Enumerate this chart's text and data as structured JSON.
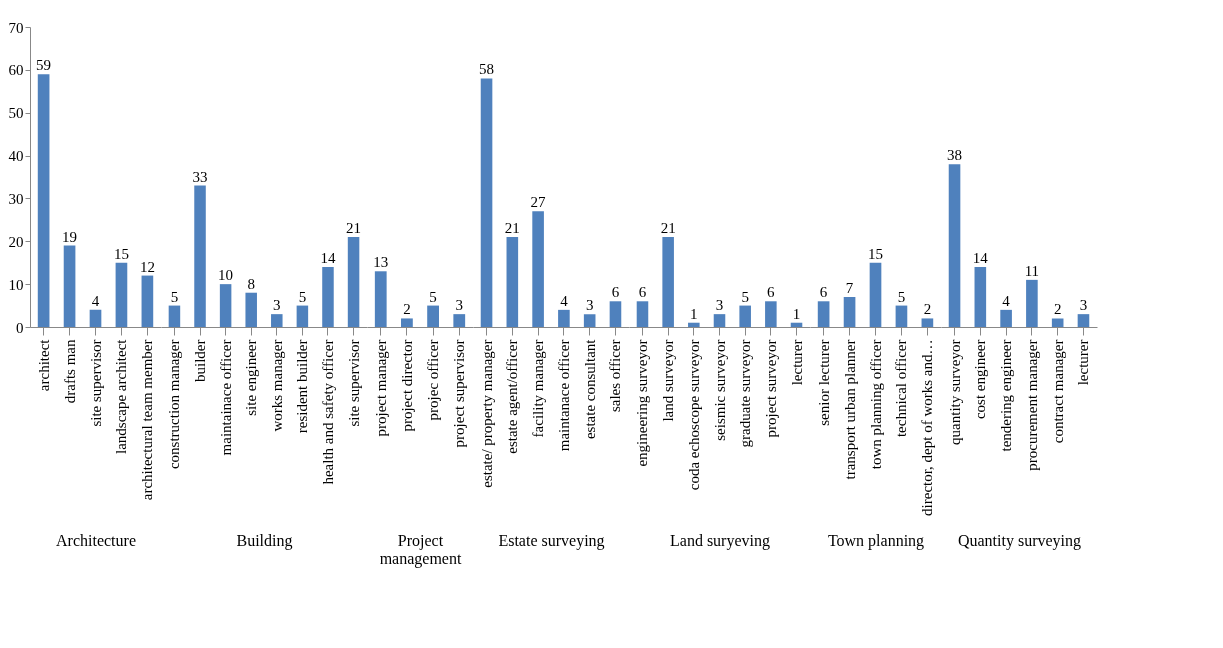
{
  "chart_data": [
    {
      "type": "bar",
      "xlabel": "Architecture",
      "categories": [
        "architect",
        "drafts man",
        "site supervisor",
        "landscape architect",
        "architectural team member"
      ],
      "values": [
        59,
        19,
        4,
        15,
        12
      ],
      "color": "#4f81bd",
      "ylim": [
        0,
        70
      ],
      "yticks": [
        0,
        10,
        20,
        30,
        40,
        50,
        60,
        70
      ],
      "data_labels": true,
      "grid": false
    },
    {
      "type": "bar",
      "xlabel": "Building",
      "categories": [
        "construction manager",
        "builder",
        "maintainace officer",
        "site engineer",
        "works manager",
        "resident builder",
        "health and safety officer",
        "site supervisor"
      ],
      "values": [
        5,
        33,
        10,
        8,
        3,
        5,
        14,
        21
      ],
      "color": "#4f81bd",
      "ylim": [
        0,
        70
      ],
      "tick_labels": "x",
      "data_labels": true,
      "grid": false
    },
    {
      "type": "bar",
      "xlabel": "Project management",
      "categories": [
        "project manager",
        "project director",
        "projec officer",
        "project supervisor"
      ],
      "values": [
        13,
        2,
        5,
        3
      ],
      "color": "#4f81bd",
      "ylim": [
        0,
        70
      ],
      "tick_labels": "x",
      "data_labels": true,
      "grid": false
    },
    {
      "type": "bar",
      "xlabel": "Estate surveying",
      "categories": [
        "estate/ property manager",
        "estate agent/officer",
        "facility manager",
        "maintanace officer",
        "estate consultant",
        "sales officer"
      ],
      "values": [
        58,
        21,
        27,
        4,
        3,
        6
      ],
      "color": "#4f81bd",
      "ylim": [
        0,
        70
      ],
      "tick_labels": "x",
      "data_labels": true,
      "grid": false
    },
    {
      "type": "bar",
      "xlabel": "Land suryeving",
      "categories": [
        "engineering surveyor",
        "land surveyor",
        "coda echoscope surveyor",
        "seismic surveyor",
        "graduate surveyor",
        "project surveyor",
        "lecturer"
      ],
      "values": [
        6,
        21,
        1,
        3,
        5,
        6,
        1
      ],
      "color": "#4f81bd",
      "ylim": [
        0,
        70
      ],
      "tick_labels": "x",
      "data_labels": true,
      "grid": false
    },
    {
      "type": "bar",
      "xlabel": "Town planning",
      "categories": [
        "senior lecturer",
        "transport urban planner",
        "town planning officer",
        "technical officer",
        "director, dept of works and…"
      ],
      "values": [
        6,
        7,
        15,
        5,
        2
      ],
      "color": "#4f81bd",
      "ylim": [
        0,
        70
      ],
      "tick_labels": "x",
      "data_labels": true,
      "grid": false
    },
    {
      "type": "bar",
      "xlabel": "Quantity surveying",
      "categories": [
        "quantity surveyor",
        "cost engineer",
        "tendering engineer",
        "procurement manager",
        "contract manager",
        "lecturer"
      ],
      "values": [
        38,
        14,
        4,
        11,
        2,
        3
      ],
      "color": "#4f81bd",
      "ylim": [
        0,
        70
      ],
      "tick_labels": "x",
      "data_labels": true,
      "grid": false
    }
  ]
}
